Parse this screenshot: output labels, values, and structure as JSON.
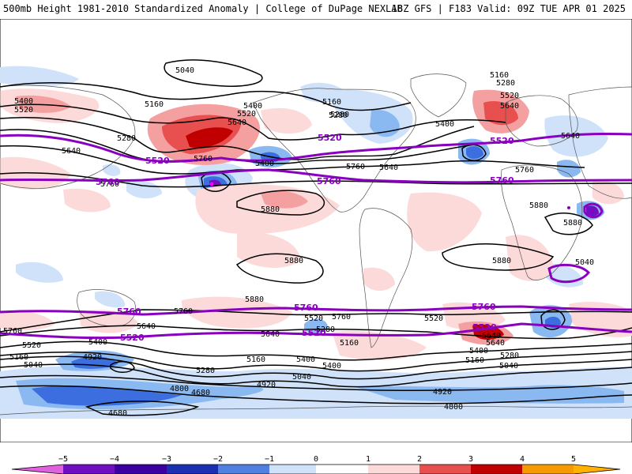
{
  "header": {
    "left": "500mb Height 1981-2010 Standardized Anomaly | College of DuPage NEXLAB",
    "right": "18Z GFS | F183 Valid: 09Z TUE APR 01 2025"
  },
  "colors": {
    "pos1": "#fcdada",
    "pos2": "#f4a0a0",
    "pos3": "#e85050",
    "pos4": "#c00000",
    "neg1": "#cfe2fa",
    "neg2": "#8ab8f0",
    "neg3": "#3c6ee0",
    "neg4": "#1a30b0",
    "neg5": "#7010c0",
    "thick": "#8a00c0"
  },
  "contour_labels": {
    "black": [
      "5040",
      "5160",
      "5280",
      "5400",
      "5520",
      "5640",
      "5760",
      "5880",
      "5160",
      "5280",
      "5400",
      "5520",
      "5640",
      "5400",
      "5520",
      "5640",
      "5160",
      "5280",
      "5280",
      "5400",
      "5640",
      "5760",
      "5760",
      "5640",
      "5760",
      "5880",
      "5880",
      "5880",
      "5880",
      "5880",
      "5760",
      "5640",
      "5760",
      "5760",
      "5640",
      "5640",
      "5520",
      "5520",
      "5400",
      "5400",
      "5160",
      "5160",
      "5040",
      "5040",
      "5280",
      "4920",
      "4920",
      "4800",
      "4680",
      "4680",
      "4800",
      "4920",
      "5040",
      "5160",
      "5280",
      "5400",
      "5640",
      "5520",
      "5400",
      "5280",
      "5160",
      "5040"
    ],
    "thick": [
      "5520",
      "5760",
      "5520",
      "5520",
      "5760",
      "5760",
      "5760",
      "5760",
      "5760",
      "5520",
      "5520",
      "5520"
    ]
  },
  "colorbar": {
    "ticks": [
      "−5",
      "−4",
      "−3",
      "−2",
      "−1",
      "0",
      "1",
      "2",
      "3",
      "4",
      "5"
    ]
  }
}
